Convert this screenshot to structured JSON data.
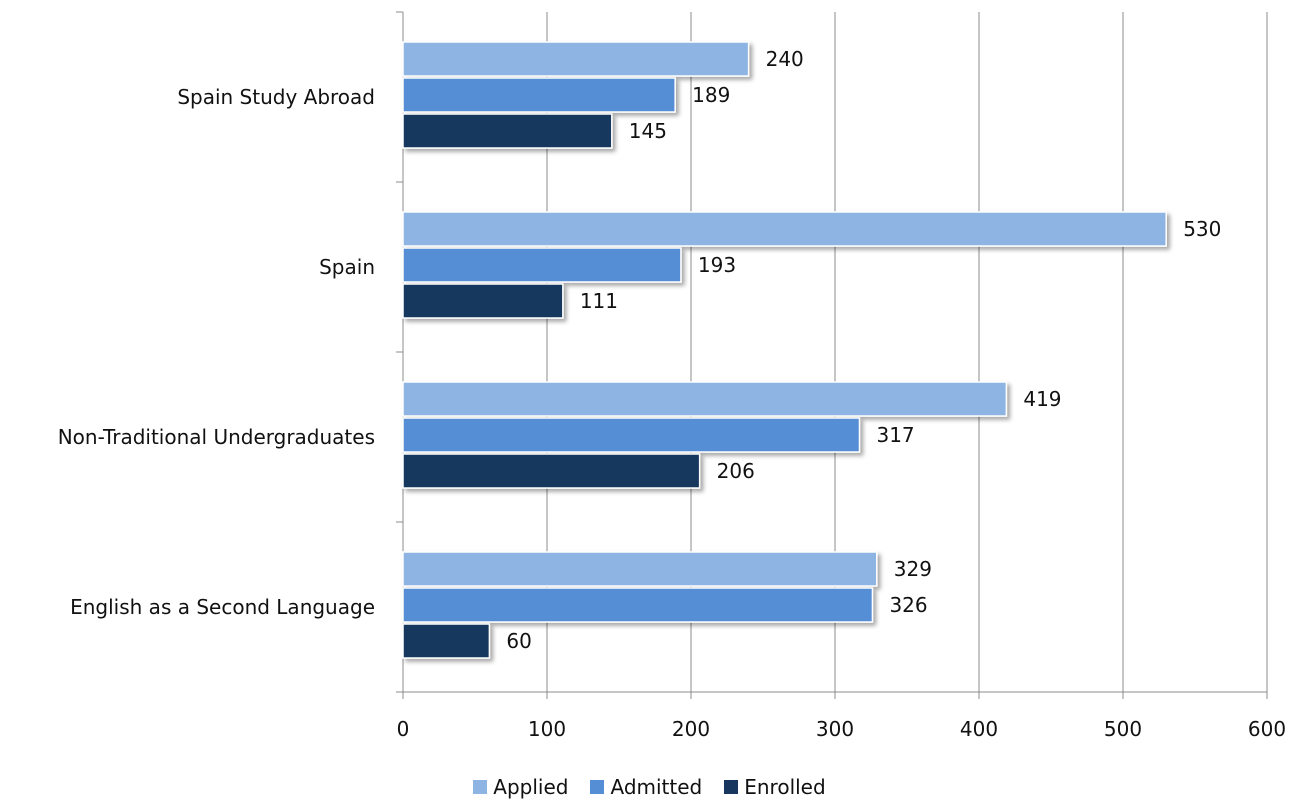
{
  "chart_data": {
    "type": "bar",
    "orientation": "horizontal",
    "categories": [
      "Spain Study Abroad",
      "Spain",
      "Non-Traditional Undergraduates",
      "English as a Second Language"
    ],
    "series": [
      {
        "name": "Applied",
        "color": "#8db4e2",
        "values": [
          240,
          530,
          419,
          329
        ]
      },
      {
        "name": "Admitted",
        "color": "#558ed5",
        "values": [
          189,
          193,
          317,
          326
        ]
      },
      {
        "name": "Enrolled",
        "color": "#17375e",
        "values": [
          145,
          111,
          206,
          60
        ]
      }
    ],
    "xlim": [
      0,
      600
    ],
    "x_ticks": [
      0,
      100,
      200,
      300,
      400,
      500,
      600
    ],
    "grid": true,
    "legend_position": "bottom",
    "data_labels": true
  }
}
